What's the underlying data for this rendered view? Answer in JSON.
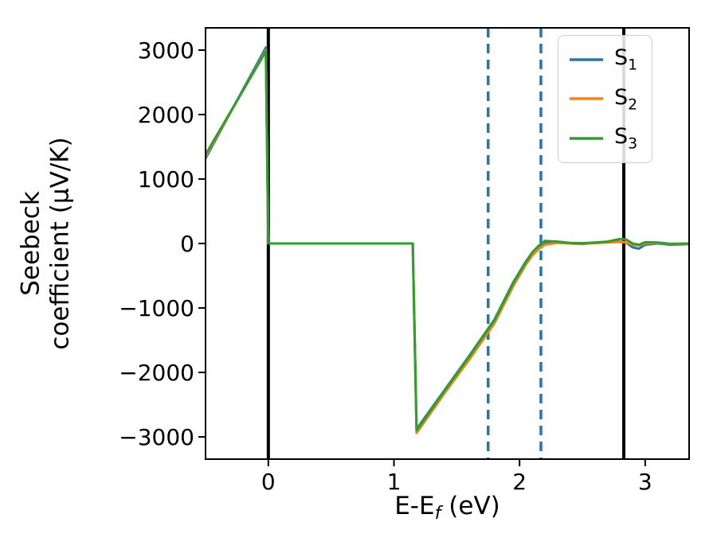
{
  "axes": {
    "xlabel": {
      "prefix": "E-E",
      "sub": "f",
      "suffix": " (eV)"
    },
    "ylabel": {
      "line1": "Seebeck",
      "line2": "coefficient  (μV/K)"
    }
  },
  "legend": {
    "items": [
      {
        "main": "S",
        "sub": "1",
        "color": "#1f77b4"
      },
      {
        "main": "S",
        "sub": "2",
        "color": "#ff7f0e"
      },
      {
        "main": "S",
        "sub": "3",
        "color": "#2ca02c"
      }
    ]
  },
  "chart_data": {
    "type": "line",
    "title": "",
    "xlabel": "E-E_f (eV)",
    "ylabel": "Seebeck coefficient (μV/K)",
    "xlim": [
      -0.5,
      3.35
    ],
    "ylim": [
      -3345,
      3345
    ],
    "xticks": [
      0,
      1,
      2,
      3
    ],
    "yticks": [
      -3000,
      -2000,
      -1000,
      0,
      1000,
      2000,
      3000
    ],
    "grid": false,
    "legend_position": "upper right",
    "vlines": [
      {
        "x": 0.0,
        "style": "solid",
        "color": "#000000",
        "width": 4
      },
      {
        "x": 2.83,
        "style": "solid",
        "color": "#000000",
        "width": 4
      },
      {
        "x": 1.75,
        "style": "dashed",
        "color": "#1f77b4",
        "width": 3.5
      },
      {
        "x": 2.17,
        "style": "dashed",
        "color": "#1f77b4",
        "width": 3.5
      }
    ],
    "x": [
      -0.5,
      -0.02,
      0.0,
      1.15,
      1.18,
      1.4,
      1.6,
      1.8,
      1.95,
      2.05,
      2.1,
      2.15,
      2.2,
      2.3,
      2.4,
      2.5,
      2.6,
      2.7,
      2.8,
      2.85,
      2.9,
      2.95,
      3.0,
      3.1,
      3.2,
      3.35
    ],
    "series": [
      {
        "name": "S1",
        "color": "#1f77b4",
        "y": [
          1320,
          3040,
          0,
          0,
          -2880,
          -2280,
          -1740,
          -1180,
          -600,
          -280,
          -150,
          -60,
          10,
          20,
          0,
          -10,
          10,
          20,
          30,
          10,
          -60,
          -80,
          -20,
          0,
          -20,
          -10
        ]
      },
      {
        "name": "S2",
        "color": "#ff7f0e",
        "y": [
          1350,
          3000,
          0,
          0,
          -2940,
          -2330,
          -1800,
          -1240,
          -660,
          -330,
          -190,
          -90,
          -20,
          10,
          0,
          -5,
          5,
          15,
          25,
          15,
          -20,
          -30,
          0,
          10,
          -10,
          -5
        ]
      },
      {
        "name": "S3",
        "color": "#2ca02c",
        "y": [
          1380,
          2980,
          0,
          0,
          -2900,
          -2290,
          -1750,
          -1190,
          -610,
          -290,
          -140,
          -40,
          40,
          30,
          10,
          5,
          15,
          30,
          70,
          60,
          0,
          -20,
          20,
          15,
          -5,
          0
        ]
      }
    ]
  }
}
